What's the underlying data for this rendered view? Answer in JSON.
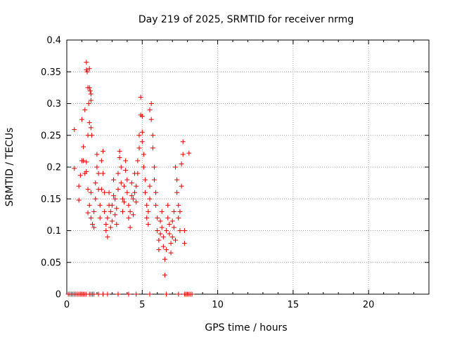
{
  "chart_data": {
    "type": "scatter",
    "title": "Day 219 of 2025, SRMTID for receiver nrmg",
    "xlabel": "GPS time / hours",
    "ylabel": "SRMTID / TECUs",
    "xlim": [
      0,
      24
    ],
    "ylim": [
      0,
      0.4
    ],
    "grid": true,
    "marker": "+",
    "series_color": "#e00000",
    "x_ticks": [
      {
        "value": 0,
        "label": "0"
      },
      {
        "value": 5,
        "label": "5"
      },
      {
        "value": 10,
        "label": "10"
      },
      {
        "value": 15,
        "label": "15"
      },
      {
        "value": 20,
        "label": "20"
      }
    ],
    "y_ticks": [
      {
        "value": 0,
        "label": "0"
      },
      {
        "value": 0.05,
        "label": "0.05"
      },
      {
        "value": 0.1,
        "label": "0.1"
      },
      {
        "value": 0.15,
        "label": "0.15"
      },
      {
        "value": 0.2,
        "label": "0.2"
      },
      {
        "value": 0.25,
        "label": "0.25"
      },
      {
        "value": 0.3,
        "label": "0.3"
      },
      {
        "value": 0.35,
        "label": "0.35"
      },
      {
        "value": 0.4,
        "label": "0.4"
      }
    ],
    "series": [
      {
        "name": "SRMTID",
        "points": [
          [
            0.1,
            0
          ],
          [
            0.2,
            0
          ],
          [
            0.3,
            0
          ],
          [
            0.4,
            0
          ],
          [
            0.5,
            0
          ],
          [
            0.6,
            0
          ],
          [
            0.7,
            0
          ],
          [
            0.8,
            0
          ],
          [
            0.9,
            0
          ],
          [
            1.0,
            0
          ],
          [
            1.1,
            0
          ],
          [
            1.2,
            0
          ],
          [
            1.3,
            0
          ],
          [
            1.5,
            0
          ],
          [
            1.6,
            0
          ],
          [
            1.7,
            0
          ],
          [
            1.8,
            0
          ],
          [
            2.1,
            0
          ],
          [
            2.4,
            0
          ],
          [
            2.7,
            0
          ],
          [
            3.4,
            0
          ],
          [
            4.1,
            0
          ],
          [
            4.6,
            0
          ],
          [
            5.5,
            0
          ],
          [
            6.6,
            0
          ],
          [
            7.4,
            0
          ],
          [
            7.8,
            0
          ],
          [
            7.9,
            0
          ],
          [
            8.0,
            0
          ],
          [
            8.1,
            0
          ],
          [
            8.2,
            0
          ],
          [
            8.3,
            0
          ],
          [
            0.5,
            0.198
          ],
          [
            0.5,
            0.259
          ],
          [
            0.8,
            0.148
          ],
          [
            0.8,
            0.17
          ],
          [
            0.9,
            0.187
          ],
          [
            1.0,
            0.21
          ],
          [
            1.0,
            0.275
          ],
          [
            1.1,
            0.232
          ],
          [
            1.1,
            0.21
          ],
          [
            1.2,
            0.19
          ],
          [
            1.2,
            0.29
          ],
          [
            1.3,
            0.353
          ],
          [
            1.3,
            0.365
          ],
          [
            1.35,
            0.35
          ],
          [
            1.4,
            0.325
          ],
          [
            1.45,
            0.3
          ],
          [
            1.5,
            0.325
          ],
          [
            1.5,
            0.355
          ],
          [
            1.55,
            0.32
          ],
          [
            1.6,
            0.315
          ],
          [
            1.6,
            0.305
          ],
          [
            1.5,
            0.27
          ],
          [
            1.6,
            0.262
          ],
          [
            1.65,
            0.25
          ],
          [
            1.4,
            0.25
          ],
          [
            1.3,
            0.208
          ],
          [
            1.3,
            0.193
          ],
          [
            1.4,
            0.165
          ],
          [
            1.4,
            0.128
          ],
          [
            1.5,
            0.14
          ],
          [
            1.6,
            0.16
          ],
          [
            1.6,
            0.12
          ],
          [
            1.7,
            0.11
          ],
          [
            1.8,
            0.105
          ],
          [
            1.8,
            0.13
          ],
          [
            1.9,
            0.15
          ],
          [
            1.9,
            0.175
          ],
          [
            2.0,
            0.2
          ],
          [
            2.0,
            0.22
          ],
          [
            2.1,
            0.19
          ],
          [
            2.1,
            0.165
          ],
          [
            2.2,
            0.14
          ],
          [
            2.2,
            0.12
          ],
          [
            2.3,
            0.165
          ],
          [
            2.3,
            0.21
          ],
          [
            2.4,
            0.225
          ],
          [
            2.4,
            0.19
          ],
          [
            2.5,
            0.16
          ],
          [
            2.5,
            0.13
          ],
          [
            2.6,
            0.11
          ],
          [
            2.6,
            0.1
          ],
          [
            2.7,
            0.09
          ],
          [
            2.7,
            0.12
          ],
          [
            2.8,
            0.14
          ],
          [
            2.8,
            0.16
          ],
          [
            2.9,
            0.13
          ],
          [
            2.9,
            0.105
          ],
          [
            3.0,
            0.115
          ],
          [
            3.0,
            0.14
          ],
          [
            3.1,
            0.155
          ],
          [
            3.1,
            0.18
          ],
          [
            3.2,
            0.15
          ],
          [
            3.2,
            0.125
          ],
          [
            3.3,
            0.11
          ],
          [
            3.3,
            0.135
          ],
          [
            3.4,
            0.165
          ],
          [
            3.4,
            0.19
          ],
          [
            3.5,
            0.215
          ],
          [
            3.5,
            0.225
          ],
          [
            3.6,
            0.2
          ],
          [
            3.6,
            0.175
          ],
          [
            3.7,
            0.15
          ],
          [
            3.7,
            0.13
          ],
          [
            3.8,
            0.145
          ],
          [
            3.8,
            0.17
          ],
          [
            3.9,
            0.195
          ],
          [
            3.9,
            0.21
          ],
          [
            4.0,
            0.18
          ],
          [
            4.0,
            0.16
          ],
          [
            4.1,
            0.14
          ],
          [
            4.1,
            0.12
          ],
          [
            4.2,
            0.105
          ],
          [
            4.2,
            0.13
          ],
          [
            4.3,
            0.155
          ],
          [
            4.3,
            0.175
          ],
          [
            4.4,
            0.15
          ],
          [
            4.4,
            0.125
          ],
          [
            4.5,
            0.16
          ],
          [
            4.5,
            0.19
          ],
          [
            4.6,
            0.17
          ],
          [
            4.6,
            0.145
          ],
          [
            4.7,
            0.19
          ],
          [
            4.7,
            0.21
          ],
          [
            4.8,
            0.23
          ],
          [
            4.8,
            0.25
          ],
          [
            4.9,
            0.282
          ],
          [
            4.9,
            0.31
          ],
          [
            5.0,
            0.28
          ],
          [
            5.0,
            0.255
          ],
          [
            5.0,
            0.24
          ],
          [
            5.1,
            0.22
          ],
          [
            5.1,
            0.2
          ],
          [
            5.2,
            0.18
          ],
          [
            5.2,
            0.16
          ],
          [
            5.3,
            0.14
          ],
          [
            5.3,
            0.12
          ],
          [
            5.4,
            0.11
          ],
          [
            5.4,
            0.13
          ],
          [
            5.5,
            0.15
          ],
          [
            5.5,
            0.17
          ],
          [
            5.5,
            0.29
          ],
          [
            5.6,
            0.3
          ],
          [
            5.6,
            0.275
          ],
          [
            5.7,
            0.25
          ],
          [
            5.7,
            0.23
          ],
          [
            5.8,
            0.2
          ],
          [
            5.8,
            0.18
          ],
          [
            5.9,
            0.16
          ],
          [
            5.9,
            0.14
          ],
          [
            6.0,
            0.12
          ],
          [
            6.0,
            0.1
          ],
          [
            6.1,
            0.085
          ],
          [
            6.1,
            0.07
          ],
          [
            6.2,
            0.095
          ],
          [
            6.2,
            0.115
          ],
          [
            6.3,
            0.13
          ],
          [
            6.3,
            0.105
          ],
          [
            6.4,
            0.09
          ],
          [
            6.4,
            0.075
          ],
          [
            6.5,
            0.055
          ],
          [
            6.5,
            0.03
          ],
          [
            6.6,
            0.07
          ],
          [
            6.6,
            0.1
          ],
          [
            6.7,
            0.12
          ],
          [
            6.7,
            0.14
          ],
          [
            6.8,
            0.11
          ],
          [
            6.8,
            0.095
          ],
          [
            6.9,
            0.08
          ],
          [
            6.9,
            0.065
          ],
          [
            7.0,
            0.09
          ],
          [
            7.0,
            0.115
          ],
          [
            7.1,
            0.13
          ],
          [
            7.1,
            0.105
          ],
          [
            7.2,
            0.085
          ],
          [
            7.2,
            0.2
          ],
          [
            7.3,
            0.18
          ],
          [
            7.3,
            0.16
          ],
          [
            7.4,
            0.14
          ],
          [
            7.4,
            0.12
          ],
          [
            7.5,
            0.1
          ],
          [
            7.5,
            0.13
          ],
          [
            7.6,
            0.17
          ],
          [
            7.6,
            0.205
          ],
          [
            7.7,
            0.24
          ],
          [
            7.7,
            0.22
          ],
          [
            7.8,
            0.1
          ],
          [
            7.8,
            0.08
          ],
          [
            8.1,
            0.222
          ]
        ]
      }
    ]
  }
}
